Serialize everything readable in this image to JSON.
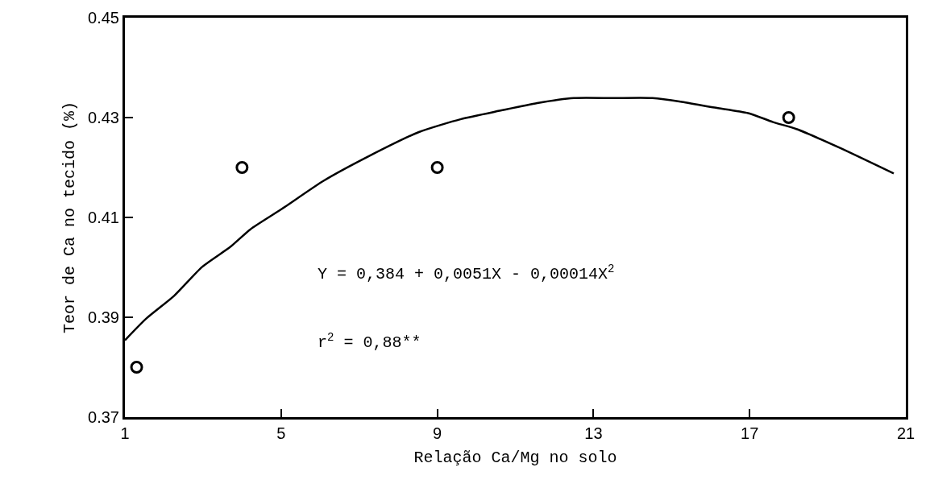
{
  "chart_data": {
    "type": "scatter",
    "xlabel": "Relação Ca/Mg no solo",
    "ylabel": "Teor de Ca no tecido (%)",
    "xlim": [
      1,
      21
    ],
    "xticks": [
      1,
      5,
      9,
      13,
      17,
      21
    ],
    "ylim": [
      0.37,
      0.45
    ],
    "yticks": [
      0.37,
      0.39,
      0.41,
      0.43,
      0.45
    ],
    "grid": false,
    "legend": false,
    "series": [
      {
        "marker": "circle",
        "color": "#000000",
        "x": [
          1.3,
          4,
          9,
          18
        ],
        "values": [
          0.38,
          0.42,
          0.42,
          0.43
        ]
      },
      {
        "type": "line",
        "marker": "none",
        "color": "#000000",
        "line_style": "solid",
        "x": [
          1,
          1.54,
          2.26,
          2.98,
          3.7,
          4.21,
          5,
          6.08,
          7.23,
          8.53,
          9.61,
          10.62,
          11.56,
          12.5,
          13.5,
          14.51,
          15.23,
          16.1,
          16.96,
          17.6,
          18.2,
          19.29,
          20.69
        ],
        "values": [
          0.3854,
          0.3897,
          0.3943,
          0.4001,
          0.4041,
          0.4076,
          0.4116,
          0.4173,
          0.4222,
          0.4271,
          0.4297,
          0.4314,
          0.4329,
          0.4339,
          0.4339,
          0.4339,
          0.4332,
          0.432,
          0.4309,
          0.4291,
          0.4277,
          0.424,
          0.4188
        ]
      }
    ],
    "annotations": [
      "Y = 0,384 + 0,0051X - 0,00014X$^{2}$",
      "r$^{2}$ = 0,88**"
    ]
  }
}
